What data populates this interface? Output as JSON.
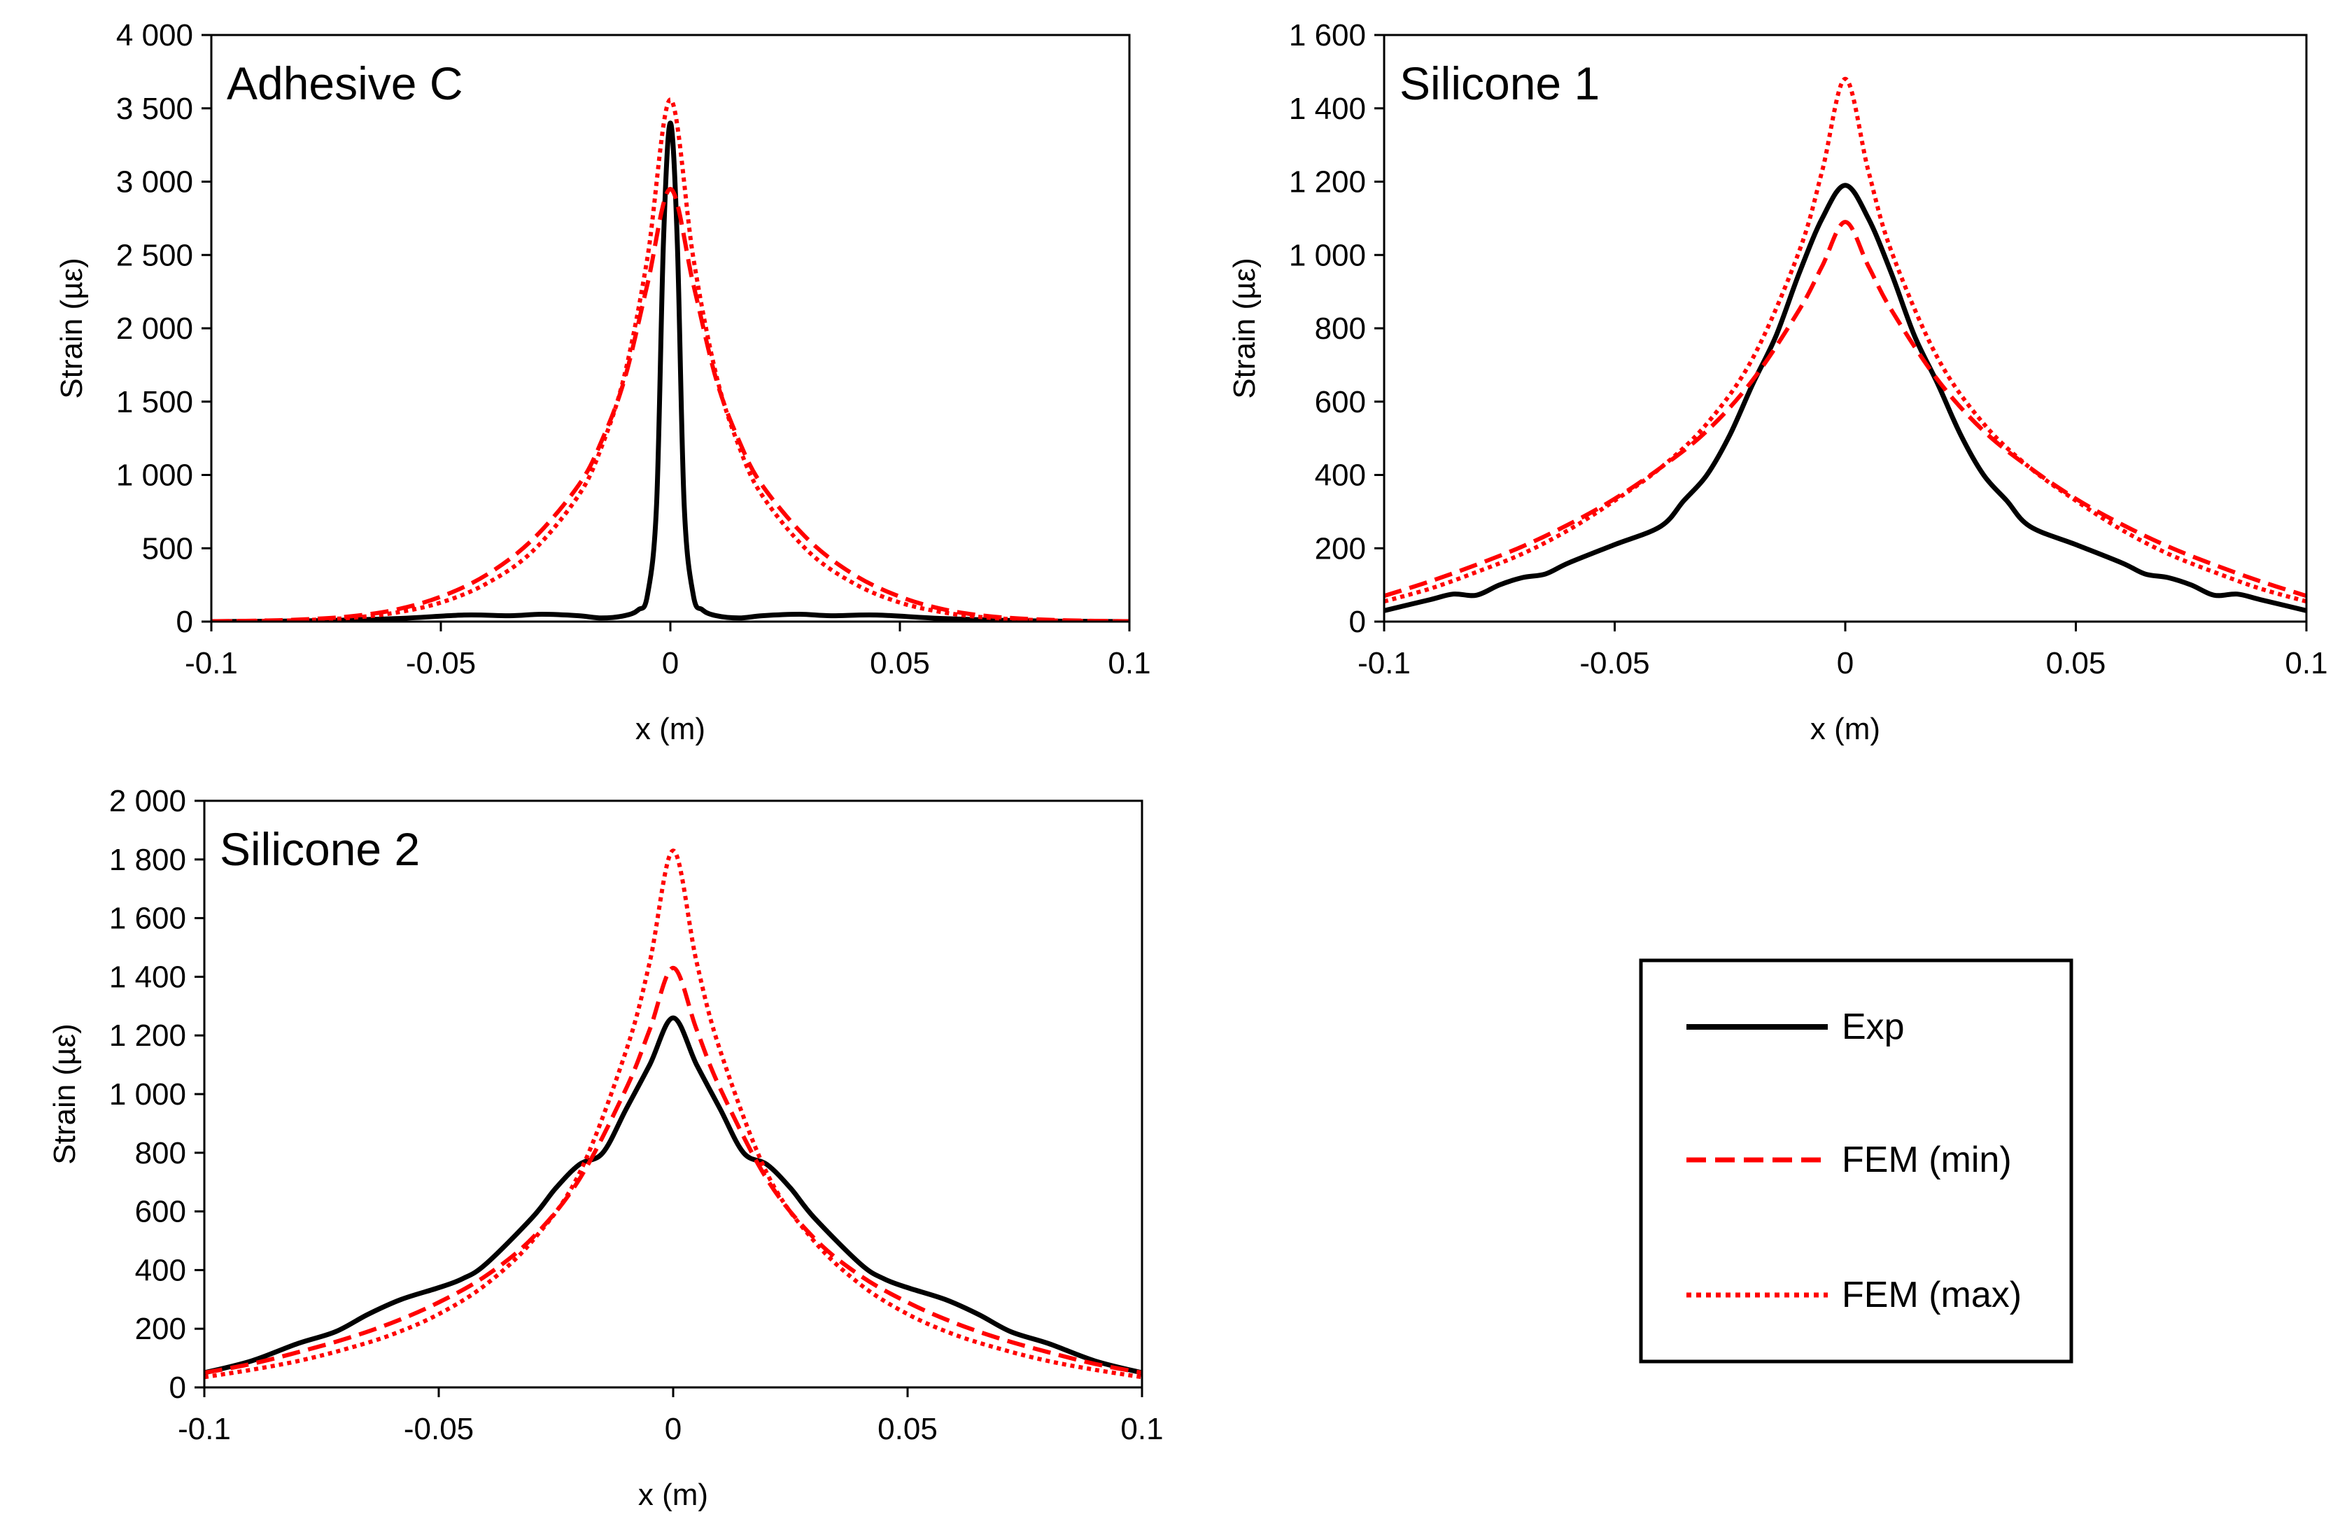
{
  "legend": {
    "placement": "bottom-right",
    "entries": [
      {
        "label": "Exp",
        "color": "#000000",
        "style": "solid"
      },
      {
        "label": "FEM (min)",
        "color": "#ff0000",
        "style": "dashed"
      },
      {
        "label": "FEM (max)",
        "color": "#ff0000",
        "style": "dotted"
      }
    ]
  },
  "chart_data": [
    {
      "type": "line",
      "title": "Adhesive C",
      "xlabel": "x (m)",
      "ylabel": "Strain (µε)",
      "xlim": [
        -0.1,
        0.1
      ],
      "ylim": [
        0,
        4000
      ],
      "xticks": [
        -0.1,
        -0.05,
        0,
        0.05,
        0.1
      ],
      "xtick_labels": [
        "-0.1",
        "-0.05",
        "0",
        "0.05",
        "0.1"
      ],
      "yticks": [
        0,
        500,
        1000,
        1500,
        2000,
        2500,
        3000,
        3500,
        4000
      ],
      "ytick_labels": [
        "0",
        "500",
        "1 000",
        "1 500",
        "2 000",
        "2 500",
        "3 000",
        "3 500",
        "4 000"
      ],
      "grid": false,
      "series": [
        {
          "name": "Exp",
          "color": "#000000",
          "style": "solid",
          "x": [
            -0.1,
            -0.08,
            -0.06,
            -0.045,
            -0.035,
            -0.028,
            -0.02,
            -0.015,
            -0.01,
            -0.007,
            -0.005,
            -0.003,
            -0.0015,
            0,
            0.0015,
            0.003,
            0.005,
            0.007,
            0.01,
            0.015,
            0.02,
            0.028,
            0.035,
            0.045,
            0.06,
            0.08,
            0.1
          ],
          "y": [
            0,
            5,
            20,
            45,
            40,
            50,
            40,
            25,
            40,
            80,
            180,
            800,
            2600,
            3400,
            2600,
            800,
            180,
            80,
            40,
            25,
            40,
            50,
            40,
            45,
            20,
            5,
            0
          ]
        },
        {
          "name": "FEM (min)",
          "color": "#ff0000",
          "style": "dashed",
          "x": [
            -0.1,
            -0.09,
            -0.08,
            -0.07,
            -0.06,
            -0.05,
            -0.04,
            -0.03,
            -0.02,
            -0.015,
            -0.01,
            -0.005,
            0,
            0.005,
            0.01,
            0.015,
            0.02,
            0.03,
            0.04,
            0.05,
            0.06,
            0.07,
            0.08,
            0.09,
            0.1
          ],
          "y": [
            2,
            6,
            15,
            35,
            80,
            170,
            320,
            560,
            930,
            1230,
            1650,
            2300,
            2950,
            2300,
            1650,
            1230,
            930,
            560,
            320,
            170,
            80,
            35,
            15,
            6,
            2
          ]
        },
        {
          "name": "FEM (max)",
          "color": "#ff0000",
          "style": "dotted",
          "x": [
            -0.1,
            -0.09,
            -0.08,
            -0.07,
            -0.06,
            -0.05,
            -0.04,
            -0.03,
            -0.02,
            -0.015,
            -0.01,
            -0.005,
            0,
            0.005,
            0.01,
            0.015,
            0.02,
            0.03,
            0.04,
            0.05,
            0.06,
            0.07,
            0.08,
            0.09,
            0.1
          ],
          "y": [
            1,
            4,
            10,
            25,
            60,
            130,
            260,
            480,
            860,
            1190,
            1680,
            2480,
            3560,
            2480,
            1680,
            1190,
            860,
            480,
            260,
            130,
            60,
            25,
            10,
            4,
            1
          ]
        }
      ]
    },
    {
      "type": "line",
      "title": "Silicone 1",
      "xlabel": "x (m)",
      "ylabel": "Strain (µε)",
      "xlim": [
        -0.1,
        0.1
      ],
      "ylim": [
        0,
        1600
      ],
      "xticks": [
        -0.1,
        -0.05,
        0,
        0.05,
        0.1
      ],
      "xtick_labels": [
        "-0.1",
        "-0.05",
        "0",
        "0.05",
        "0.1"
      ],
      "yticks": [
        0,
        200,
        400,
        600,
        800,
        1000,
        1200,
        1400,
        1600
      ],
      "ytick_labels": [
        "0",
        "200",
        "400",
        "600",
        "800",
        "1 000",
        "1 200",
        "1 400",
        "1 600"
      ],
      "grid": false,
      "series": [
        {
          "name": "Exp",
          "color": "#000000",
          "style": "solid",
          "x": [
            -0.1,
            -0.09,
            -0.085,
            -0.08,
            -0.075,
            -0.07,
            -0.065,
            -0.06,
            -0.05,
            -0.04,
            -0.035,
            -0.03,
            -0.025,
            -0.02,
            -0.015,
            -0.01,
            -0.005,
            0,
            0.005,
            0.01,
            0.015,
            0.02,
            0.025,
            0.03,
            0.035,
            0.04,
            0.05,
            0.06,
            0.065,
            0.07,
            0.075,
            0.08,
            0.085,
            0.09,
            0.1
          ],
          "y": [
            30,
            60,
            75,
            72,
            100,
            120,
            130,
            160,
            210,
            260,
            330,
            400,
            510,
            650,
            780,
            950,
            1100,
            1190,
            1100,
            950,
            780,
            650,
            510,
            400,
            330,
            260,
            210,
            160,
            130,
            120,
            100,
            72,
            75,
            60,
            30
          ]
        },
        {
          "name": "FEM (min)",
          "color": "#ff0000",
          "style": "dashed",
          "x": [
            -0.1,
            -0.09,
            -0.08,
            -0.07,
            -0.06,
            -0.05,
            -0.04,
            -0.03,
            -0.02,
            -0.01,
            -0.005,
            0,
            0.005,
            0.01,
            0.02,
            0.03,
            0.04,
            0.05,
            0.06,
            0.07,
            0.08,
            0.09,
            0.1
          ],
          "y": [
            70,
            110,
            155,
            205,
            265,
            335,
            420,
            520,
            660,
            850,
            970,
            1090,
            970,
            850,
            660,
            520,
            420,
            335,
            265,
            205,
            155,
            110,
            70
          ]
        },
        {
          "name": "FEM (max)",
          "color": "#ff0000",
          "style": "dotted",
          "x": [
            -0.1,
            -0.09,
            -0.08,
            -0.07,
            -0.06,
            -0.05,
            -0.04,
            -0.03,
            -0.02,
            -0.01,
            -0.005,
            0,
            0.005,
            0.01,
            0.02,
            0.03,
            0.04,
            0.05,
            0.06,
            0.07,
            0.08,
            0.09,
            0.1
          ],
          "y": [
            55,
            90,
            135,
            185,
            250,
            330,
            420,
            540,
            720,
            1010,
            1230,
            1480,
            1230,
            1010,
            720,
            540,
            420,
            330,
            250,
            185,
            135,
            90,
            55
          ]
        }
      ]
    },
    {
      "type": "line",
      "title": "Silicone 2",
      "xlabel": "x (m)",
      "ylabel": "Strain (µε)",
      "xlim": [
        -0.1,
        0.1
      ],
      "ylim": [
        0,
        2000
      ],
      "xticks": [
        -0.1,
        -0.05,
        0,
        0.05,
        0.1
      ],
      "xtick_labels": [
        "-0.1",
        "-0.05",
        "0",
        "0.05",
        "0.1"
      ],
      "yticks": [
        0,
        200,
        400,
        600,
        800,
        1000,
        1200,
        1400,
        1600,
        1800,
        2000
      ],
      "ytick_labels": [
        "0",
        "200",
        "400",
        "600",
        "800",
        "1 000",
        "1 200",
        "1 400",
        "1 600",
        "1 800",
        "2 000"
      ],
      "grid": false,
      "series": [
        {
          "name": "Exp",
          "color": "#000000",
          "style": "solid",
          "x": [
            -0.1,
            -0.09,
            -0.08,
            -0.072,
            -0.065,
            -0.058,
            -0.05,
            -0.045,
            -0.04,
            -0.03,
            -0.025,
            -0.02,
            -0.015,
            -0.01,
            -0.005,
            0,
            0.005,
            0.01,
            0.015,
            0.02,
            0.025,
            0.03,
            0.04,
            0.045,
            0.05,
            0.058,
            0.065,
            0.072,
            0.08,
            0.09,
            0.1
          ],
          "y": [
            50,
            90,
            150,
            190,
            250,
            300,
            340,
            370,
            420,
            580,
            680,
            760,
            800,
            950,
            1100,
            1260,
            1100,
            950,
            800,
            760,
            680,
            580,
            420,
            370,
            340,
            300,
            250,
            190,
            150,
            90,
            50
          ]
        },
        {
          "name": "FEM (min)",
          "color": "#ff0000",
          "style": "dashed",
          "x": [
            -0.1,
            -0.09,
            -0.08,
            -0.07,
            -0.06,
            -0.05,
            -0.04,
            -0.03,
            -0.02,
            -0.01,
            -0.005,
            0,
            0.005,
            0.01,
            0.02,
            0.03,
            0.04,
            0.05,
            0.06,
            0.07,
            0.08,
            0.09,
            0.1
          ],
          "y": [
            50,
            80,
            120,
            165,
            220,
            290,
            380,
            510,
            710,
            1020,
            1220,
            1430,
            1220,
            1020,
            710,
            510,
            380,
            290,
            220,
            165,
            120,
            80,
            50
          ]
        },
        {
          "name": "FEM (max)",
          "color": "#ff0000",
          "style": "dotted",
          "x": [
            -0.1,
            -0.09,
            -0.08,
            -0.07,
            -0.06,
            -0.05,
            -0.04,
            -0.03,
            -0.02,
            -0.01,
            -0.005,
            0,
            0.005,
            0.01,
            0.02,
            0.03,
            0.04,
            0.05,
            0.06,
            0.07,
            0.08,
            0.09,
            0.1
          ],
          "y": [
            35,
            60,
            90,
            130,
            180,
            250,
            350,
            500,
            730,
            1150,
            1450,
            1830,
            1450,
            1150,
            730,
            500,
            350,
            250,
            180,
            130,
            90,
            60,
            35
          ]
        }
      ]
    }
  ]
}
